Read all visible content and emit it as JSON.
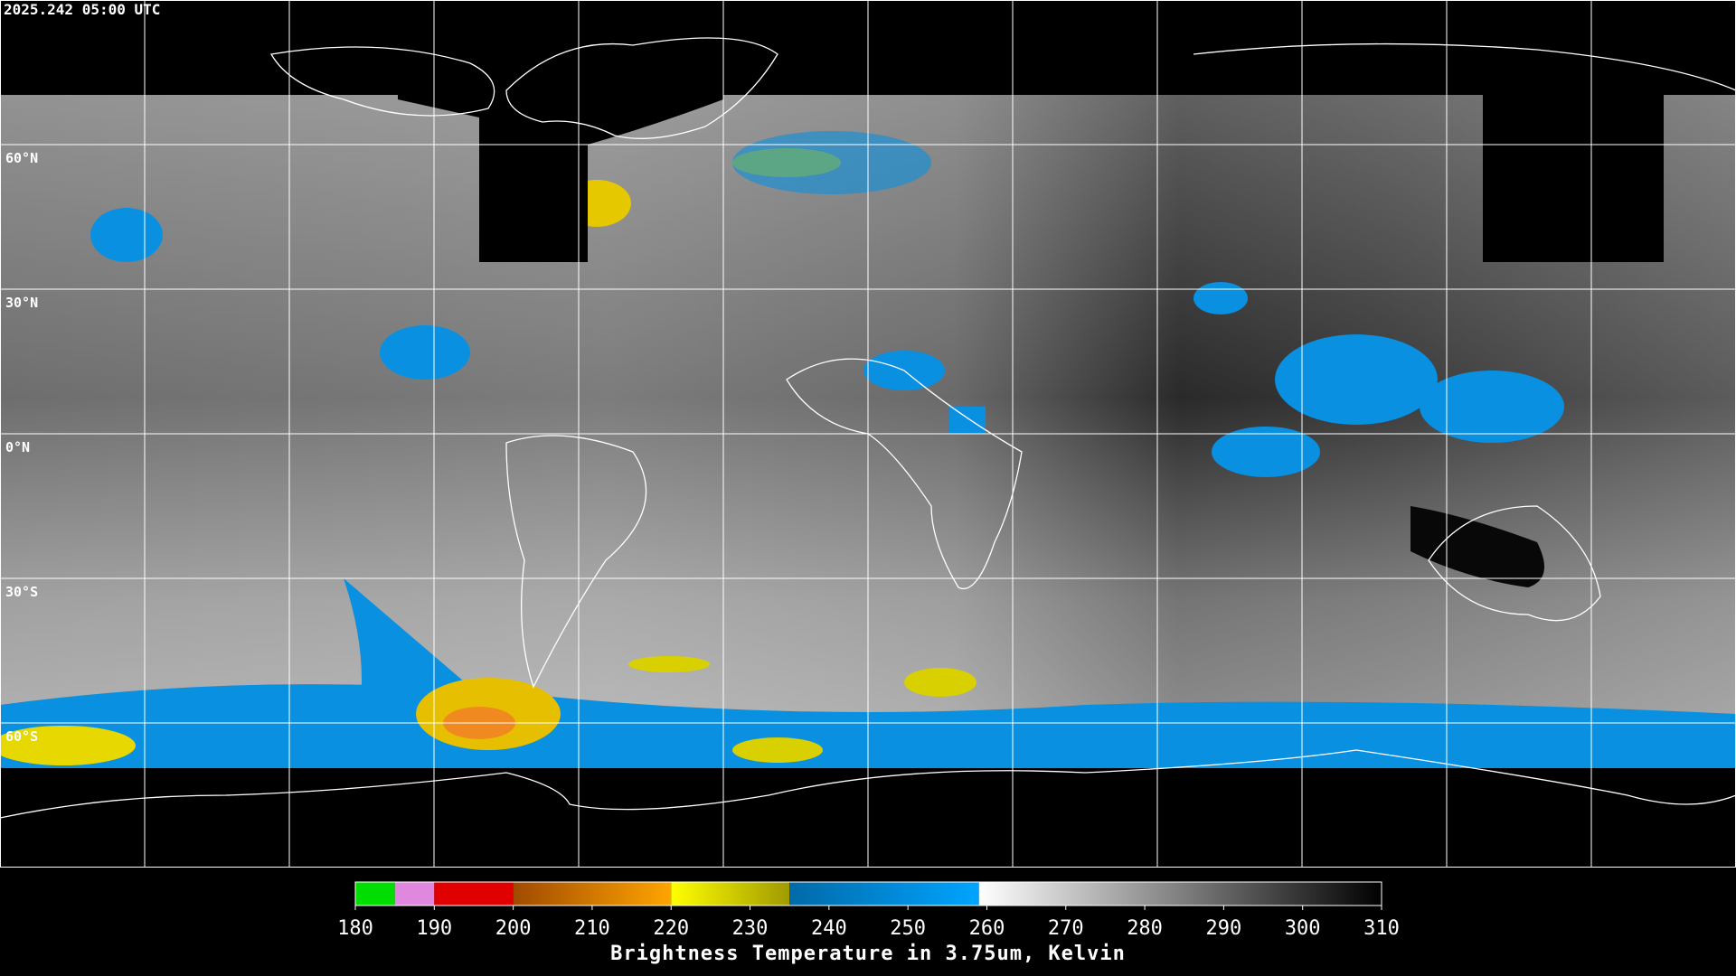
{
  "timestamp": "2025.242 05:00 UTC",
  "latitude_labels": [
    {
      "value": 60,
      "label": "60°N"
    },
    {
      "value": 30,
      "label": "30°N"
    },
    {
      "value": 0,
      "label": "0°N"
    },
    {
      "value": -30,
      "label": "30°S"
    },
    {
      "value": -60,
      "label": "60°S"
    }
  ],
  "colorbar": {
    "title": "Brightness Temperature in 3.75um, Kelvin",
    "lim": [
      180,
      310
    ],
    "ticks": [
      180,
      190,
      200,
      210,
      220,
      230,
      240,
      250,
      260,
      270,
      280,
      290,
      300,
      310
    ],
    "segments": [
      {
        "from": 180,
        "to": 185,
        "colors": [
          "#00dd00",
          "#00dd00"
        ]
      },
      {
        "from": 185,
        "to": 190,
        "colors": [
          "#e088e0",
          "#e088e0"
        ]
      },
      {
        "from": 190,
        "to": 200,
        "colors": [
          "#e00000",
          "#e00000"
        ]
      },
      {
        "from": 200,
        "to": 220,
        "colors": [
          "#a04a00",
          "#ffa500"
        ]
      },
      {
        "from": 220,
        "to": 235,
        "colors": [
          "#ffff00",
          "#a09a00"
        ]
      },
      {
        "from": 235,
        "to": 259,
        "colors": [
          "#006aa8",
          "#00a4ff"
        ]
      },
      {
        "from": 259,
        "to": 310,
        "colors": [
          "#ffffff",
          "#000000"
        ]
      }
    ]
  }
}
